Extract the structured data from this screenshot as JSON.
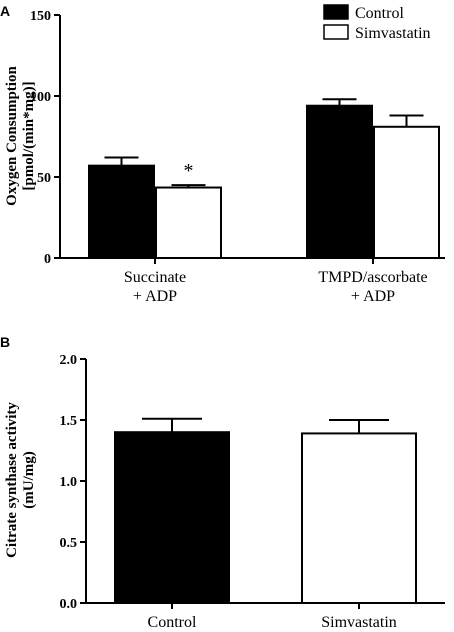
{
  "chart_data": [
    {
      "panel": "A",
      "type": "bar",
      "ylabel_lines": [
        "Oxygen Consumption",
        "[pmol/(min*mg)]"
      ],
      "xlabel": "",
      "ylim": [
        0,
        150
      ],
      "yticks": [
        0,
        50,
        100,
        150
      ],
      "categories": [
        [
          "Succinate",
          "+ ADP"
        ],
        [
          "TMPD/ascorbate",
          "+ ADP"
        ]
      ],
      "series": [
        {
          "name": "Control",
          "color": "#000000",
          "values": [
            57,
            94
          ],
          "errors": [
            5,
            4
          ]
        },
        {
          "name": "Simvastatin",
          "color": "#ffffff",
          "values": [
            43.5,
            81
          ],
          "errors": [
            1.5,
            7
          ]
        }
      ],
      "annotations": [
        {
          "text": "*",
          "series": 1,
          "category": 0
        }
      ],
      "legend": "top-right",
      "grid": false
    },
    {
      "panel": "B",
      "type": "bar",
      "ylabel_lines": [
        "Citrate synthase activity",
        "(mU/mg)"
      ],
      "xlabel": "",
      "ylim": [
        0,
        2.0
      ],
      "yticks": [
        "0.0",
        "0.5",
        "1.0",
        "1.5",
        "2.0"
      ],
      "categories": [
        [
          "Control"
        ],
        [
          "Simvastatin"
        ]
      ],
      "values": [
        1.4,
        1.39
      ],
      "errors": [
        0.11,
        0.11
      ],
      "colors": [
        "#000000",
        "#ffffff"
      ],
      "legend": "none",
      "grid": false
    }
  ]
}
